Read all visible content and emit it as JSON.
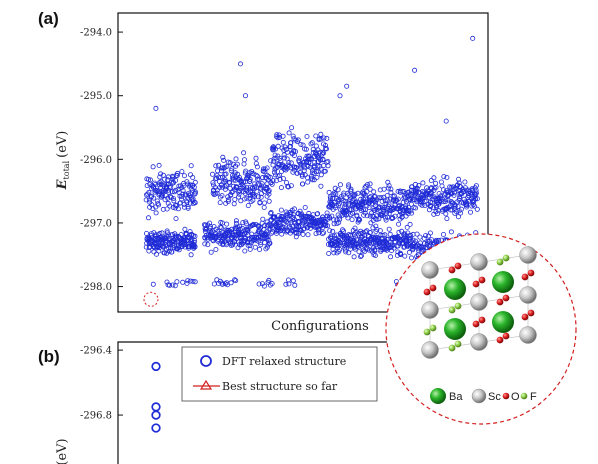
{
  "chart_data": [
    {
      "panel": "(a)",
      "type": "scatter",
      "title": "",
      "xlabel": "Configurations",
      "ylabel_main": "E",
      "ylabel_sub": "total",
      "ylabel_unit": "(eV)",
      "ylim": [
        -298.4,
        -293.7
      ],
      "yticks": [
        "-294.0",
        "-295.0",
        "-296.0",
        "-297.0",
        "-298.0"
      ],
      "ytick_values": [
        -294.0,
        -295.0,
        -296.0,
        -297.0,
        -298.0
      ],
      "grid": false,
      "marker_color": "#1f2bd6",
      "highlight": {
        "config_index": 3,
        "energy": -298.2,
        "color": "#d42020"
      },
      "bands": [
        {
          "from": 0,
          "to": 30,
          "center": -297.3,
          "spread": 0.25
        },
        {
          "from": 0,
          "to": 30,
          "center": -296.5,
          "spread": 0.5
        },
        {
          "from": 35,
          "to": 75,
          "center": -297.2,
          "spread": 0.3
        },
        {
          "from": 40,
          "to": 75,
          "center": -296.4,
          "spread": 0.6
        },
        {
          "from": 75,
          "to": 110,
          "center": -297.0,
          "spread": 0.3
        },
        {
          "from": 75,
          "to": 110,
          "center": -296.0,
          "spread": 0.6
        },
        {
          "from": 110,
          "to": 160,
          "center": -297.3,
          "spread": 0.3
        },
        {
          "from": 110,
          "to": 160,
          "center": -296.7,
          "spread": 0.4
        },
        {
          "from": 160,
          "to": 200,
          "center": -297.4,
          "spread": 0.3
        },
        {
          "from": 160,
          "to": 200,
          "center": -296.6,
          "spread": 0.4
        }
      ],
      "low_cluster": {
        "center": -297.95,
        "spread": 0.1
      },
      "outliers": [
        {
          "x": 6,
          "y": -295.2
        },
        {
          "x": 57,
          "y": -294.5
        },
        {
          "x": 60,
          "y": -295.0
        },
        {
          "x": 117,
          "y": -295.0
        },
        {
          "x": 121,
          "y": -294.85
        },
        {
          "x": 162,
          "y": -294.6
        },
        {
          "x": 197,
          "y": -294.1
        },
        {
          "x": 181,
          "y": -295.4
        }
      ],
      "n_configs": 200
    },
    {
      "panel": "(b)",
      "type": "scatter",
      "title": "",
      "ylabel_unit": "(eV)",
      "yticks": [
        "-296.4",
        "-296.8"
      ],
      "ytick_values": [
        -296.4,
        -296.8
      ],
      "ylim": [
        -297.2,
        -296.35
      ],
      "series": [
        {
          "name": "DFT relaxed structure",
          "marker": "circle",
          "color": "#1f2bd6",
          "x": [
            1,
            1,
            1,
            1
          ],
          "values": [
            -296.5,
            -296.75,
            -296.8,
            -296.88
          ]
        },
        {
          "name": "Best structure so far",
          "marker": "triangle-line",
          "color": "#d42020",
          "x": [],
          "values": []
        }
      ]
    }
  ],
  "inset": {
    "legend": {
      "ba": "Ba",
      "sc": "Sc",
      "o": "O",
      "f": "F"
    },
    "colors": {
      "ba": "#1ea81e",
      "sc": "#b8b8b8",
      "o": "#d42020",
      "f": "#86c93a",
      "border": "#d42020"
    }
  }
}
